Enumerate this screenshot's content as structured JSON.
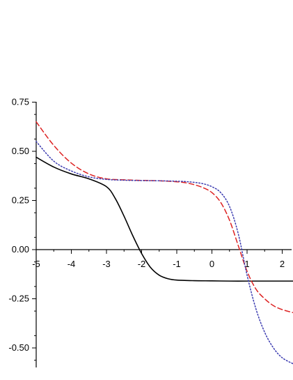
{
  "chart_data": {
    "type": "line",
    "title": "",
    "xlabel": "",
    "ylabel": "",
    "xlim": [
      -5,
      2.3
    ],
    "ylim": [
      -0.6,
      0.75
    ],
    "grid": false,
    "legend": "none",
    "x_ticks": [
      -5,
      -4,
      -3,
      -2,
      -1,
      0,
      1,
      2
    ],
    "x_tick_labels": [
      "-5",
      "-4",
      "-3",
      "-2",
      "-1",
      "0",
      "1",
      "2"
    ],
    "y_ticks": [
      0.75,
      0.5,
      0.25,
      0.0,
      -0.25,
      -0.5
    ],
    "y_tick_labels": [
      "0.75",
      "0.50",
      "0.25",
      "0.00",
      "-0.25",
      "-0.50"
    ],
    "series": [
      {
        "color": "#000000",
        "dash": "solid",
        "x": [
          -5,
          -4.5,
          -4,
          -3.5,
          -3,
          -2.75,
          -2.5,
          -2.25,
          -2,
          -1.75,
          -1.5,
          -1.25,
          -1,
          -0.5,
          0,
          0.5,
          1,
          1.5,
          2,
          2.3
        ],
        "y": [
          0.47,
          0.42,
          0.385,
          0.36,
          0.32,
          0.26,
          0.17,
          0.07,
          -0.02,
          -0.09,
          -0.13,
          -0.148,
          -0.155,
          -0.158,
          -0.159,
          -0.16,
          -0.16,
          -0.16,
          -0.16,
          -0.16
        ]
      },
      {
        "color": "#dd2222",
        "dash": "dashed",
        "x": [
          -5,
          -4.5,
          -4,
          -3.5,
          -3,
          -2.5,
          -2,
          -1.5,
          -1,
          -0.75,
          -0.5,
          -0.25,
          0,
          0.25,
          0.5,
          0.75,
          1,
          1.25,
          1.5,
          1.75,
          2,
          2.3
        ],
        "y": [
          0.65,
          0.53,
          0.44,
          0.385,
          0.36,
          0.355,
          0.352,
          0.35,
          0.345,
          0.34,
          0.33,
          0.315,
          0.29,
          0.24,
          0.15,
          0.02,
          -0.11,
          -0.2,
          -0.25,
          -0.285,
          -0.305,
          -0.32
        ]
      },
      {
        "color": "#3b3bb0",
        "dash": "dotted",
        "x": [
          -5,
          -4.5,
          -4,
          -3.5,
          -3,
          -2.5,
          -2,
          -1.5,
          -1,
          -0.75,
          -0.5,
          -0.25,
          0,
          0.25,
          0.5,
          0.75,
          1,
          1.25,
          1.5,
          1.75,
          2,
          2.3
        ],
        "y": [
          0.55,
          0.45,
          0.4,
          0.37,
          0.357,
          0.353,
          0.351,
          0.35,
          0.348,
          0.346,
          0.342,
          0.335,
          0.32,
          0.29,
          0.22,
          0.08,
          -0.13,
          -0.3,
          -0.42,
          -0.5,
          -0.55,
          -0.58
        ]
      }
    ]
  }
}
